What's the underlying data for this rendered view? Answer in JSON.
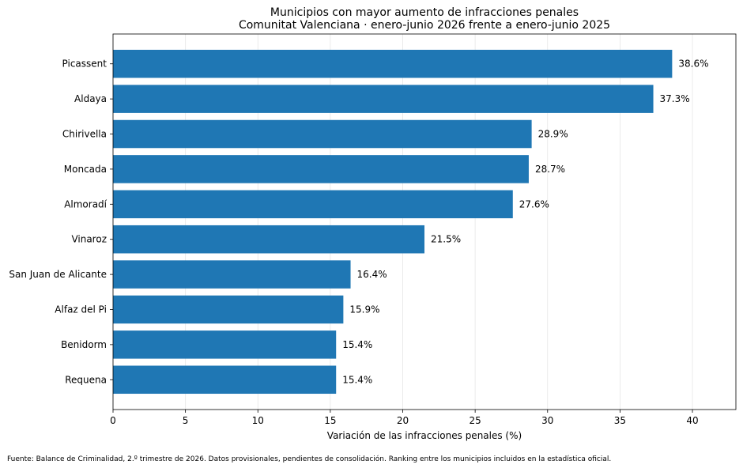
{
  "chart_data": {
    "type": "bar",
    "orientation": "horizontal",
    "title": "Municipios con mayor aumento de infracciones penales",
    "subtitle": "Comunitat Valenciana · enero-junio 2026 frente a enero-junio 2025",
    "xlabel": "Variación de las infracciones penales (%)",
    "ylabel": "",
    "categories": [
      "Picassent",
      "Aldaya",
      "Chirivella",
      "Moncada",
      "Almoradí",
      "Vinaroz",
      "San Juan de Alicante",
      "Alfaz del Pi",
      "Benidorm",
      "Requena"
    ],
    "values": [
      38.6,
      37.3,
      28.9,
      28.7,
      27.6,
      21.5,
      16.4,
      15.9,
      15.4,
      15.4
    ],
    "value_labels": [
      "38.6%",
      "37.3%",
      "28.9%",
      "28.7%",
      "27.6%",
      "21.5%",
      "16.4%",
      "15.9%",
      "15.4%",
      "15.4%"
    ],
    "xlim": [
      0,
      43
    ],
    "xticks": [
      0,
      5,
      10,
      15,
      20,
      25,
      30,
      35,
      40
    ],
    "xtick_labels": [
      "0",
      "5",
      "10",
      "15",
      "20",
      "25",
      "30",
      "35",
      "40"
    ],
    "grid": "vertical",
    "legend": "none",
    "colors": {
      "bar": "#1f77b4",
      "grid": "#e6e6e6",
      "axis": "#000000"
    }
  },
  "footnote": "Fuente: Balance de Criminalidad, 2.º trimestre de 2026. Datos provisionales, pendientes de consolidación. Ranking entre los municipios incluidos en la estadística oficial."
}
